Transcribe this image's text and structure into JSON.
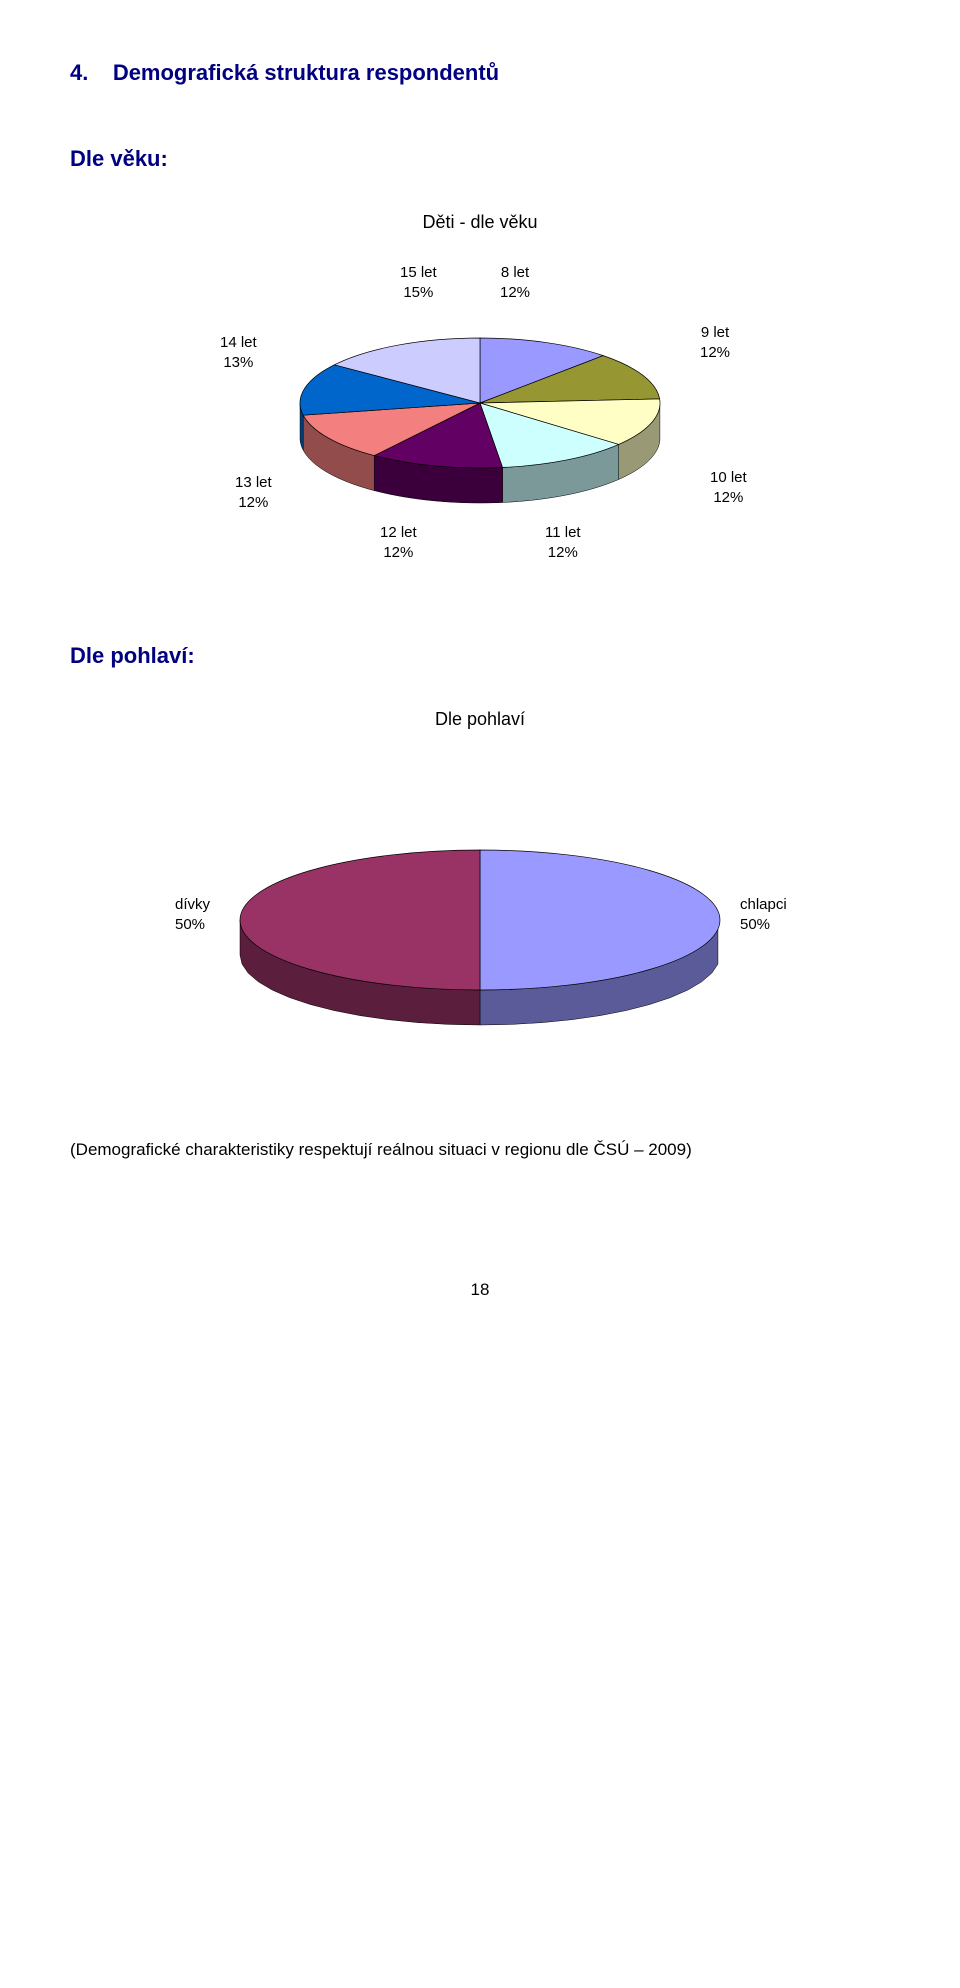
{
  "heading_num": "4.",
  "heading_text": "Demografická struktura respondentů",
  "section1_title": "Dle věku:",
  "chart1": {
    "type": "pie",
    "title": "Děti - dle věku",
    "slices": [
      {
        "label": "8 let",
        "pct": "12%",
        "color": "#9999ff"
      },
      {
        "label": "9 let",
        "pct": "12%",
        "color": "#969632"
      },
      {
        "label": "10 let",
        "pct": "12%",
        "color": "#ffffc5"
      },
      {
        "label": "11 let",
        "pct": "12%",
        "color": "#cdffff"
      },
      {
        "label": "12 let",
        "pct": "12%",
        "color": "#630063"
      },
      {
        "label": "13 let",
        "pct": "12%",
        "color": "#f47f7f"
      },
      {
        "label": "14 let",
        "pct": "13%",
        "color": "#0066cb"
      },
      {
        "label": "15 let",
        "pct": "15%",
        "color": "#ccccff"
      }
    ],
    "outline": "#000000",
    "background": "#ffffff"
  },
  "section2_title": "Dle pohlaví:",
  "chart2": {
    "type": "pie",
    "title": "Dle pohlaví",
    "slices": [
      {
        "label": "chlapci",
        "pct": "50%",
        "color": "#9999ff"
      },
      {
        "label": "dívky",
        "pct": "50%",
        "color": "#993265"
      }
    ],
    "outline": "#000000",
    "background": "#ffffff"
  },
  "footnote": "(Demografické charakteristiky respektují reálnou situaci v regionu dle  ČSÚ – 2009)",
  "page_number": "18"
}
